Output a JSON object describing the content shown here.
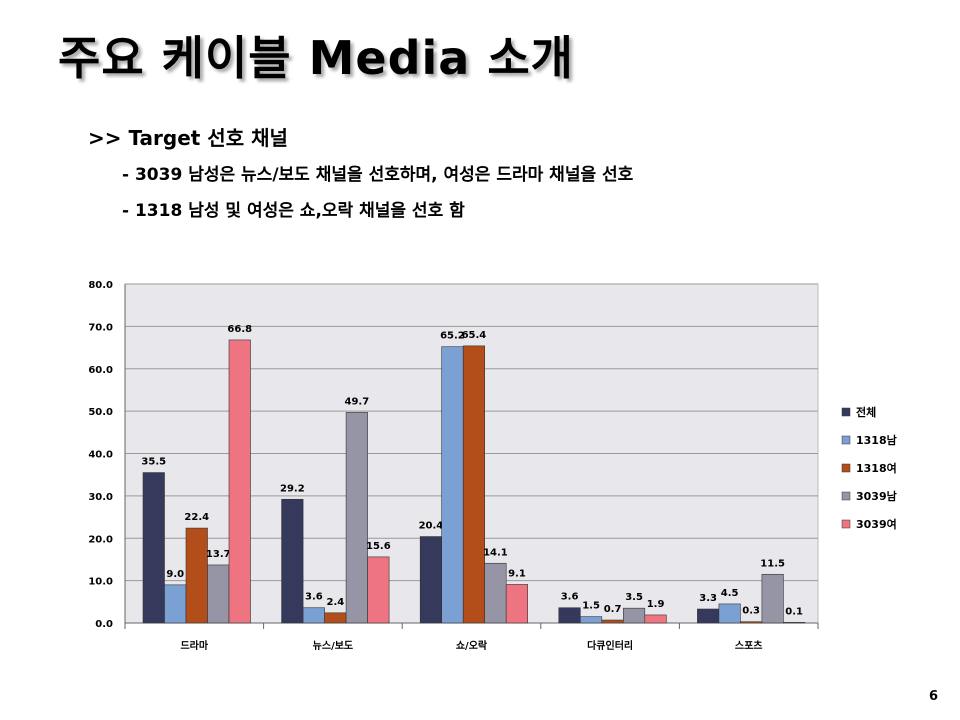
{
  "slide": {
    "title": "주요 케이블 Media 소개",
    "subtitle": ">> Target 선호 채널",
    "bullets": [
      "- 3039 남성은 뉴스/보도 채널을 선호하며, 여성은 드라마 채널을 선호",
      "- 1318 남성 및 여성은 쇼,오락 채널을 선호 함"
    ],
    "page_number": "6"
  },
  "chart_data": {
    "type": "bar",
    "categories": [
      "드라마",
      "뉴스/보도",
      "쇼/오락",
      "다큐인터리",
      "스포츠"
    ],
    "series": [
      {
        "name": "전체",
        "color": "#353a5c",
        "values": [
          35.5,
          29.2,
          20.4,
          3.6,
          3.3
        ]
      },
      {
        "name": "1318남",
        "color": "#7ba0d4",
        "values": [
          9.0,
          3.6,
          65.2,
          1.5,
          4.5
        ]
      },
      {
        "name": "1318여",
        "color": "#b34e1a",
        "values": [
          22.4,
          2.4,
          65.4,
          0.7,
          0.3
        ]
      },
      {
        "name": "3039남",
        "color": "#9695a6",
        "values": [
          13.7,
          49.7,
          14.1,
          3.5,
          11.5
        ]
      },
      {
        "name": "3039여",
        "color": "#ee7482",
        "values": [
          66.8,
          15.6,
          9.1,
          1.9,
          0.1
        ]
      }
    ],
    "yticks": [
      "0.0",
      "10.0",
      "20.0",
      "30.0",
      "40.0",
      "50.0",
      "60.0",
      "70.0",
      "80.0"
    ],
    "ylim": [
      0,
      80
    ],
    "grid": true,
    "legend_position": "right",
    "plot_background": "#e8e8ec"
  }
}
